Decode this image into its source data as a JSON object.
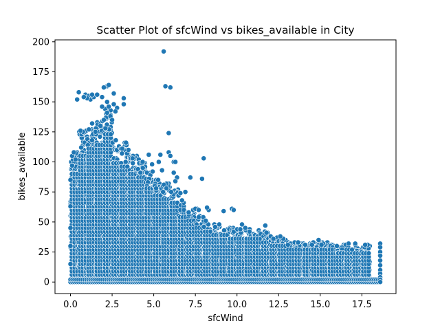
{
  "chart_data": {
    "type": "scatter",
    "title": "Scatter Plot of sfcWind vs bikes_available in City",
    "xlabel": "sfcWind",
    "ylabel": "bikes_available",
    "xlim": [
      -0.93,
      19.55
    ],
    "ylim": [
      -9.6,
      201.6
    ],
    "xticks": [
      0.0,
      2.5,
      5.0,
      7.5,
      10.0,
      12.5,
      15.0,
      17.5
    ],
    "xtick_labels": [
      "0.0",
      "2.5",
      "5.0",
      "7.5",
      "10.0",
      "12.5",
      "15.0",
      "17.5"
    ],
    "yticks": [
      0,
      25,
      50,
      75,
      100,
      125,
      150,
      175,
      200
    ],
    "ytick_labels": [
      "0",
      "25",
      "50",
      "75",
      "100",
      "125",
      "150",
      "175",
      "200"
    ],
    "grid": false,
    "legend": "none",
    "marker_color": "#1f77b4",
    "bands": [
      {
        "x": [
          0.0,
          0.5
        ],
        "y_max": 108
      },
      {
        "x": [
          0.5,
          1.0
        ],
        "y_max": 126
      },
      {
        "x": [
          1.0,
          1.5
        ],
        "y_max": 132
      },
      {
        "x": [
          1.5,
          2.0
        ],
        "y_max": 137
      },
      {
        "x": [
          2.0,
          2.5
        ],
        "y_max": 145
      },
      {
        "x": [
          2.5,
          3.0
        ],
        "y_max": 118
      },
      {
        "x": [
          3.0,
          3.5
        ],
        "y_max": 116
      },
      {
        "x": [
          3.5,
          4.0
        ],
        "y_max": 106
      },
      {
        "x": [
          4.0,
          4.5
        ],
        "y_max": 103
      },
      {
        "x": [
          4.5,
          5.0
        ],
        "y_max": 92
      },
      {
        "x": [
          5.0,
          5.5
        ],
        "y_max": 86
      },
      {
        "x": [
          5.5,
          6.0
        ],
        "y_max": 82
      },
      {
        "x": [
          6.0,
          6.5
        ],
        "y_max": 78
      },
      {
        "x": [
          6.5,
          7.0
        ],
        "y_max": 64
      },
      {
        "x": [
          7.0,
          7.5
        ],
        "y_max": 60
      },
      {
        "x": [
          7.5,
          8.0
        ],
        "y_max": 55
      },
      {
        "x": [
          8.0,
          8.5
        ],
        "y_max": 52
      },
      {
        "x": [
          8.5,
          9.0
        ],
        "y_max": 49
      },
      {
        "x": [
          9.0,
          9.5
        ],
        "y_max": 47
      },
      {
        "x": [
          9.5,
          10.0
        ],
        "y_max": 45
      },
      {
        "x": [
          10.0,
          10.5
        ],
        "y_max": 44
      },
      {
        "x": [
          10.5,
          11.0
        ],
        "y_max": 44
      },
      {
        "x": [
          11.0,
          11.5
        ],
        "y_max": 43
      },
      {
        "x": [
          11.5,
          12.0
        ],
        "y_max": 42
      },
      {
        "x": [
          12.0,
          12.5
        ],
        "y_max": 38
      },
      {
        "x": [
          12.5,
          13.0
        ],
        "y_max": 36
      },
      {
        "x": [
          13.0,
          13.5
        ],
        "y_max": 34
      },
      {
        "x": [
          13.5,
          14.0
        ],
        "y_max": 33
      },
      {
        "x": [
          14.0,
          14.5
        ],
        "y_max": 33
      },
      {
        "x": [
          14.5,
          15.0
        ],
        "y_max": 34
      },
      {
        "x": [
          15.0,
          15.5
        ],
        "y_max": 33
      },
      {
        "x": [
          15.5,
          16.0
        ],
        "y_max": 32
      },
      {
        "x": [
          16.0,
          16.5
        ],
        "y_max": 31
      },
      {
        "x": [
          16.5,
          17.0
        ],
        "y_max": 32
      },
      {
        "x": [
          17.0,
          17.5
        ],
        "y_max": 31
      },
      {
        "x": [
          17.5,
          18.0
        ],
        "y_max": 31
      }
    ],
    "points": [
      {
        "x": 5.6,
        "y": 192
      },
      {
        "x": 5.7,
        "y": 163
      },
      {
        "x": 6.0,
        "y": 162
      },
      {
        "x": 2.2,
        "y": 163
      },
      {
        "x": 2.3,
        "y": 164
      },
      {
        "x": 2.0,
        "y": 162
      },
      {
        "x": 0.5,
        "y": 158
      },
      {
        "x": 0.9,
        "y": 156
      },
      {
        "x": 1.1,
        "y": 155
      },
      {
        "x": 1.2,
        "y": 152
      },
      {
        "x": 1.4,
        "y": 154
      },
      {
        "x": 0.4,
        "y": 152
      },
      {
        "x": 1.0,
        "y": 153
      },
      {
        "x": 0.8,
        "y": 154
      },
      {
        "x": 1.3,
        "y": 156
      },
      {
        "x": 1.6,
        "y": 156
      },
      {
        "x": 1.9,
        "y": 154
      },
      {
        "x": 2.6,
        "y": 157
      },
      {
        "x": 3.2,
        "y": 153
      },
      {
        "x": 3.2,
        "y": 148
      },
      {
        "x": 2.2,
        "y": 150
      },
      {
        "x": 2.3,
        "y": 146
      },
      {
        "x": 2.6,
        "y": 148
      },
      {
        "x": 2.8,
        "y": 145
      },
      {
        "x": 1.9,
        "y": 146
      },
      {
        "x": 2.2,
        "y": 141
      },
      {
        "x": 2.4,
        "y": 138
      },
      {
        "x": 2.7,
        "y": 142
      },
      {
        "x": 2.0,
        "y": 135
      },
      {
        "x": 2.5,
        "y": 135
      },
      {
        "x": 1.3,
        "y": 132
      },
      {
        "x": 1.8,
        "y": 130
      },
      {
        "x": 2.1,
        "y": 128
      },
      {
        "x": 0.6,
        "y": 126
      },
      {
        "x": 1.5,
        "y": 125
      },
      {
        "x": 5.9,
        "y": 124
      },
      {
        "x": 5.9,
        "y": 108
      },
      {
        "x": 6.0,
        "y": 105
      },
      {
        "x": 6.2,
        "y": 100
      },
      {
        "x": 6.3,
        "y": 100
      },
      {
        "x": 6.2,
        "y": 91
      },
      {
        "x": 6.4,
        "y": 87
      },
      {
        "x": 6.3,
        "y": 84
      },
      {
        "x": 8.0,
        "y": 103
      },
      {
        "x": 7.2,
        "y": 87
      },
      {
        "x": 7.9,
        "y": 86
      },
      {
        "x": 5.4,
        "y": 106
      },
      {
        "x": 5.3,
        "y": 100
      },
      {
        "x": 5.5,
        "y": 93
      },
      {
        "x": 4.9,
        "y": 98
      },
      {
        "x": 4.7,
        "y": 106
      },
      {
        "x": 6.9,
        "y": 75
      },
      {
        "x": 6.6,
        "y": 74
      },
      {
        "x": 6.8,
        "y": 66
      },
      {
        "x": 8.3,
        "y": 60
      },
      {
        "x": 8.2,
        "y": 62
      },
      {
        "x": 7.6,
        "y": 61
      },
      {
        "x": 7.5,
        "y": 61
      },
      {
        "x": 9.2,
        "y": 59
      },
      {
        "x": 9.7,
        "y": 61
      },
      {
        "x": 9.8,
        "y": 60
      },
      {
        "x": 6.7,
        "y": 68
      },
      {
        "x": 7.7,
        "y": 60
      },
      {
        "x": 11.7,
        "y": 47
      },
      {
        "x": 10.3,
        "y": 48
      },
      {
        "x": 10.5,
        "y": 45
      },
      {
        "x": 12.6,
        "y": 38
      },
      {
        "x": 14.9,
        "y": 35
      },
      {
        "x": 16.0,
        "y": 30
      },
      {
        "x": 16.7,
        "y": 32
      },
      {
        "x": 17.1,
        "y": 32
      },
      {
        "x": 17.7,
        "y": 31
      },
      {
        "x": 18.6,
        "y": 32
      },
      {
        "x": 18.6,
        "y": 29
      },
      {
        "x": 18.6,
        "y": 25
      },
      {
        "x": 18.6,
        "y": 22
      },
      {
        "x": 18.6,
        "y": 18
      },
      {
        "x": 18.6,
        "y": 14
      },
      {
        "x": 18.6,
        "y": 10
      },
      {
        "x": 18.6,
        "y": 7
      },
      {
        "x": 18.6,
        "y": 4
      },
      {
        "x": 18.6,
        "y": 2
      },
      {
        "x": 18.6,
        "y": 0
      },
      {
        "x": 0.0,
        "y": 63
      },
      {
        "x": 0.0,
        "y": 85
      },
      {
        "x": 0.1,
        "y": 97
      },
      {
        "x": 0.1,
        "y": 105
      },
      {
        "x": 0.2,
        "y": 108
      },
      {
        "x": 0.3,
        "y": 102
      },
      {
        "x": 0.0,
        "y": 45
      },
      {
        "x": 0.0,
        "y": 30
      },
      {
        "x": 0.0,
        "y": 15
      }
    ]
  }
}
